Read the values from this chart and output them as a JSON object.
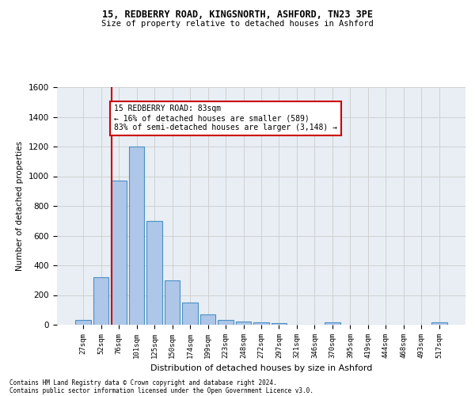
{
  "title1": "15, REDBERRY ROAD, KINGSNORTH, ASHFORD, TN23 3PE",
  "title2": "Size of property relative to detached houses in Ashford",
  "xlabel": "Distribution of detached houses by size in Ashford",
  "ylabel": "Number of detached properties",
  "footnote1": "Contains HM Land Registry data © Crown copyright and database right 2024.",
  "footnote2": "Contains public sector information licensed under the Open Government Licence v3.0.",
  "bin_labels": [
    "27sqm",
    "52sqm",
    "76sqm",
    "101sqm",
    "125sqm",
    "150sqm",
    "174sqm",
    "199sqm",
    "223sqm",
    "248sqm",
    "272sqm",
    "297sqm",
    "321sqm",
    "346sqm",
    "370sqm",
    "395sqm",
    "419sqm",
    "444sqm",
    "468sqm",
    "493sqm",
    "517sqm"
  ],
  "bar_values": [
    30,
    320,
    970,
    1200,
    700,
    300,
    150,
    70,
    30,
    20,
    15,
    10,
    0,
    0,
    15,
    0,
    0,
    0,
    0,
    0,
    15
  ],
  "bar_color": "#aec6e8",
  "bar_edge_color": "#4a90c4",
  "grid_color": "#cccccc",
  "vline_x_index": 2,
  "vline_color": "#cc0000",
  "annotation_text": "15 REDBERRY ROAD: 83sqm\n← 16% of detached houses are smaller (589)\n83% of semi-detached houses are larger (3,148) →",
  "annotation_box_color": "#ffffff",
  "annotation_box_edge": "#cc0000",
  "ylim": [
    0,
    1600
  ],
  "yticks": [
    0,
    200,
    400,
    600,
    800,
    1000,
    1200,
    1400,
    1600
  ],
  "bg_color": "#e8eef4"
}
